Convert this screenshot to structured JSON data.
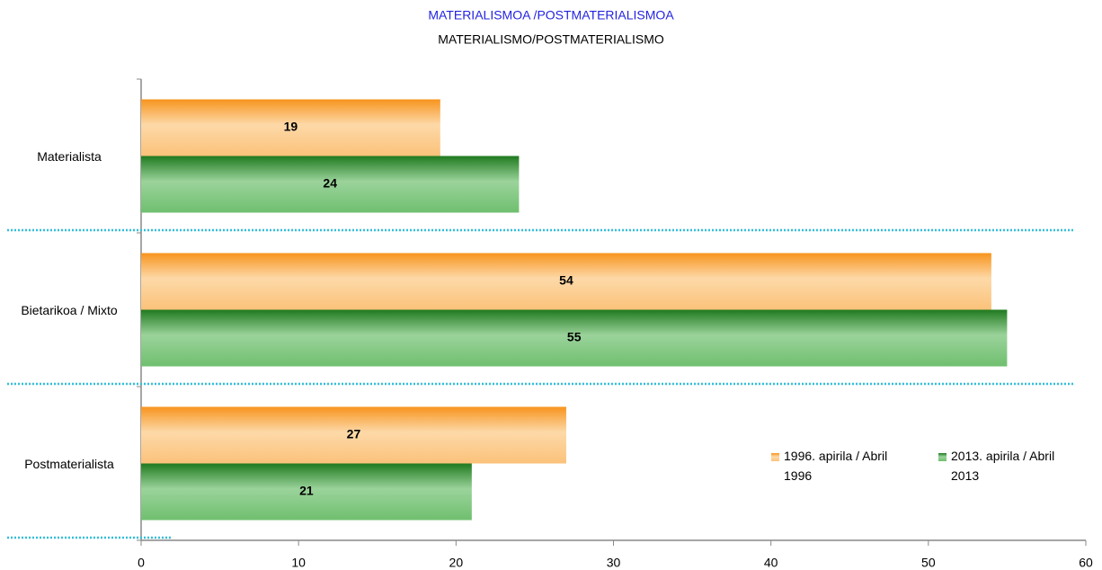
{
  "chart_data": {
    "type": "bar",
    "orientation": "horizontal",
    "title": "MATERIALISMOA /POSTMATERIALISMOA",
    "subtitle": "MATERIALISMO/POSTMATERIALISMO",
    "categories": [
      "Materialista",
      "Bietarikoa / Mixto",
      "Postmaterialista"
    ],
    "series": [
      {
        "name": "1996. apirila / Abril 1996",
        "color": "#f7a541",
        "values": [
          19,
          54,
          27
        ]
      },
      {
        "name": "2013. apirila / Abril 2013",
        "color": "#3f9b3f",
        "values": [
          24,
          55,
          21
        ]
      }
    ],
    "xlim": [
      0,
      60
    ],
    "xticks": [
      0,
      10,
      20,
      30,
      40,
      50,
      60
    ],
    "legend": "lower right"
  }
}
